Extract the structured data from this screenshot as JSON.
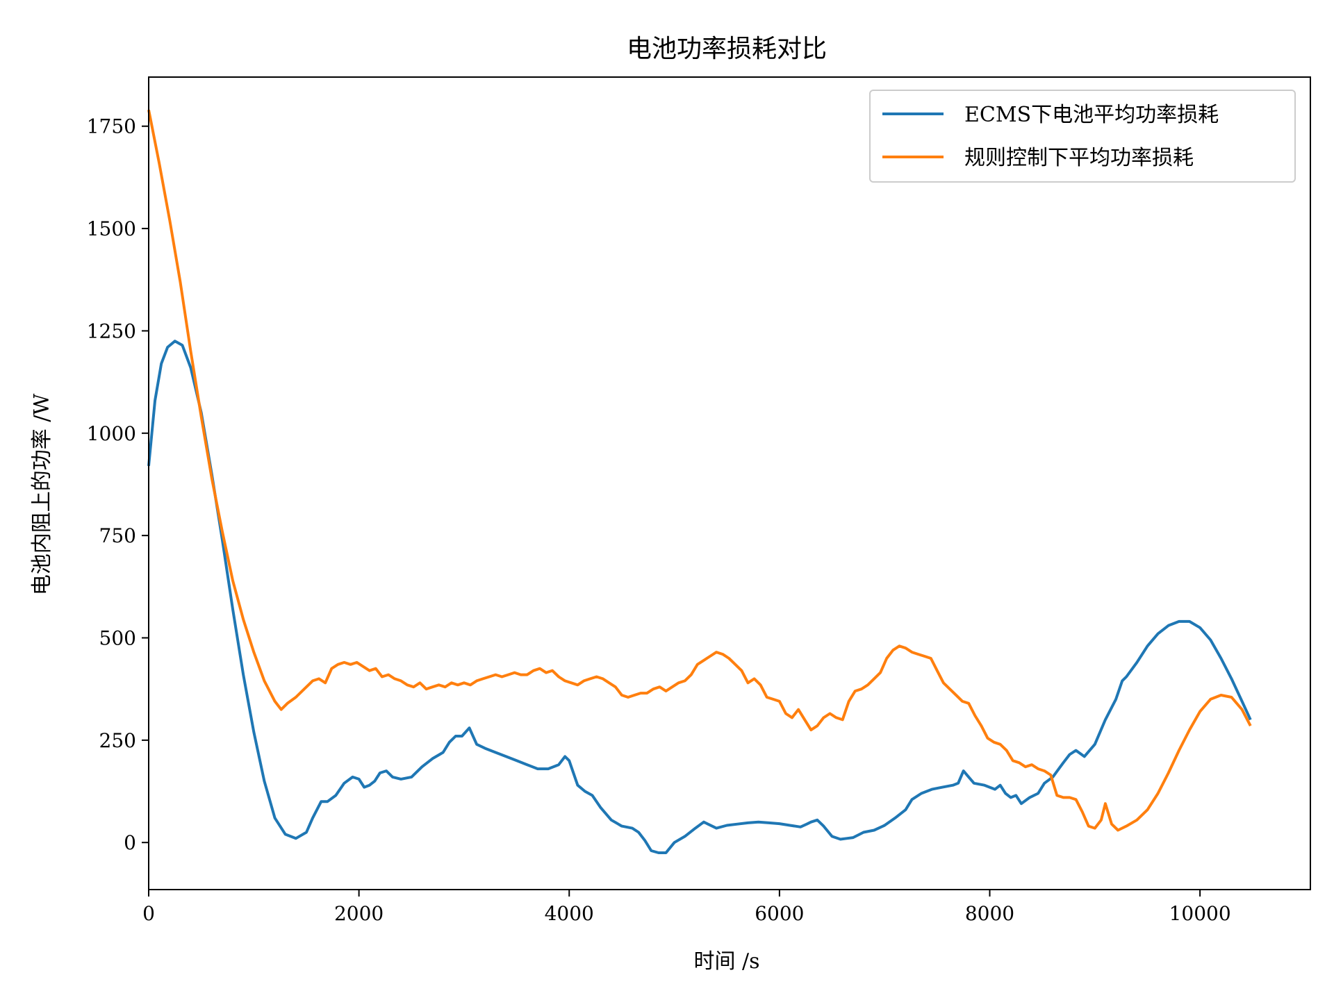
{
  "chart_data": {
    "type": "line",
    "title": "电池功率损耗对比",
    "xlabel": "时间 /s",
    "ylabel": "电池内阻上的功率 /W",
    "xlim": [
      0,
      11050
    ],
    "ylim": [
      -115,
      1870
    ],
    "xticks": [
      0,
      2000,
      4000,
      6000,
      8000,
      10000
    ],
    "yticks": [
      0,
      250,
      500,
      750,
      1000,
      1250,
      1500,
      1750
    ],
    "grid": false,
    "legend_position": "top-right",
    "series": [
      {
        "name": "ECMS下电池平均功率损耗",
        "color": "#1f77b4",
        "points": [
          [
            0,
            920
          ],
          [
            60,
            1080
          ],
          [
            120,
            1170
          ],
          [
            180,
            1210
          ],
          [
            250,
            1225
          ],
          [
            320,
            1215
          ],
          [
            400,
            1160
          ],
          [
            500,
            1050
          ],
          [
            600,
            900
          ],
          [
            700,
            740
          ],
          [
            800,
            570
          ],
          [
            900,
            410
          ],
          [
            1000,
            270
          ],
          [
            1100,
            150
          ],
          [
            1200,
            60
          ],
          [
            1300,
            20
          ],
          [
            1400,
            10
          ],
          [
            1500,
            25
          ],
          [
            1560,
            60
          ],
          [
            1640,
            100
          ],
          [
            1700,
            100
          ],
          [
            1780,
            115
          ],
          [
            1860,
            145
          ],
          [
            1940,
            160
          ],
          [
            2000,
            155
          ],
          [
            2050,
            135
          ],
          [
            2100,
            140
          ],
          [
            2150,
            150
          ],
          [
            2200,
            170
          ],
          [
            2260,
            175
          ],
          [
            2320,
            160
          ],
          [
            2400,
            155
          ],
          [
            2500,
            160
          ],
          [
            2600,
            185
          ],
          [
            2700,
            205
          ],
          [
            2800,
            220
          ],
          [
            2860,
            245
          ],
          [
            2920,
            260
          ],
          [
            2980,
            260
          ],
          [
            3050,
            280
          ],
          [
            3120,
            240
          ],
          [
            3200,
            230
          ],
          [
            3300,
            220
          ],
          [
            3400,
            210
          ],
          [
            3500,
            200
          ],
          [
            3600,
            190
          ],
          [
            3700,
            180
          ],
          [
            3800,
            180
          ],
          [
            3900,
            190
          ],
          [
            3960,
            210
          ],
          [
            4000,
            200
          ],
          [
            4080,
            140
          ],
          [
            4150,
            125
          ],
          [
            4220,
            115
          ],
          [
            4300,
            85
          ],
          [
            4400,
            55
          ],
          [
            4500,
            40
          ],
          [
            4600,
            35
          ],
          [
            4660,
            25
          ],
          [
            4720,
            5
          ],
          [
            4780,
            -20
          ],
          [
            4850,
            -25
          ],
          [
            4920,
            -25
          ],
          [
            5000,
            0
          ],
          [
            5100,
            15
          ],
          [
            5200,
            35
          ],
          [
            5280,
            50
          ],
          [
            5400,
            35
          ],
          [
            5500,
            42
          ],
          [
            5600,
            45
          ],
          [
            5700,
            48
          ],
          [
            5800,
            50
          ],
          [
            5900,
            48
          ],
          [
            6000,
            46
          ],
          [
            6100,
            42
          ],
          [
            6200,
            38
          ],
          [
            6260,
            45
          ],
          [
            6300,
            50
          ],
          [
            6360,
            55
          ],
          [
            6420,
            40
          ],
          [
            6500,
            15
          ],
          [
            6580,
            8
          ],
          [
            6640,
            10
          ],
          [
            6700,
            12
          ],
          [
            6800,
            25
          ],
          [
            6900,
            30
          ],
          [
            7000,
            42
          ],
          [
            7100,
            60
          ],
          [
            7200,
            80
          ],
          [
            7260,
            105
          ],
          [
            7350,
            120
          ],
          [
            7450,
            130
          ],
          [
            7550,
            135
          ],
          [
            7650,
            140
          ],
          [
            7700,
            145
          ],
          [
            7750,
            175
          ],
          [
            7800,
            160
          ],
          [
            7850,
            145
          ],
          [
            7950,
            140
          ],
          [
            8050,
            130
          ],
          [
            8100,
            140
          ],
          [
            8150,
            120
          ],
          [
            8200,
            110
          ],
          [
            8250,
            115
          ],
          [
            8300,
            95
          ],
          [
            8380,
            110
          ],
          [
            8460,
            120
          ],
          [
            8520,
            145
          ],
          [
            8600,
            160
          ],
          [
            8700,
            195
          ],
          [
            8760,
            215
          ],
          [
            8820,
            225
          ],
          [
            8900,
            210
          ],
          [
            9000,
            240
          ],
          [
            9100,
            300
          ],
          [
            9200,
            350
          ],
          [
            9260,
            395
          ],
          [
            9300,
            405
          ],
          [
            9400,
            440
          ],
          [
            9500,
            480
          ],
          [
            9600,
            510
          ],
          [
            9700,
            530
          ],
          [
            9800,
            540
          ],
          [
            9900,
            540
          ],
          [
            10000,
            525
          ],
          [
            10100,
            495
          ],
          [
            10200,
            450
          ],
          [
            10300,
            400
          ],
          [
            10400,
            345
          ],
          [
            10480,
            300
          ]
        ]
      },
      {
        "name": "规则控制下平均功率损耗",
        "color": "#ff7f0e",
        "points": [
          [
            0,
            1790
          ],
          [
            100,
            1660
          ],
          [
            200,
            1520
          ],
          [
            300,
            1370
          ],
          [
            400,
            1200
          ],
          [
            500,
            1040
          ],
          [
            600,
            890
          ],
          [
            700,
            760
          ],
          [
            800,
            640
          ],
          [
            900,
            545
          ],
          [
            1000,
            465
          ],
          [
            1100,
            395
          ],
          [
            1200,
            345
          ],
          [
            1260,
            325
          ],
          [
            1320,
            340
          ],
          [
            1400,
            355
          ],
          [
            1480,
            375
          ],
          [
            1560,
            395
          ],
          [
            1620,
            400
          ],
          [
            1680,
            390
          ],
          [
            1740,
            425
          ],
          [
            1800,
            435
          ],
          [
            1860,
            440
          ],
          [
            1920,
            435
          ],
          [
            1980,
            440
          ],
          [
            2040,
            430
          ],
          [
            2100,
            420
          ],
          [
            2160,
            425
          ],
          [
            2220,
            405
          ],
          [
            2280,
            410
          ],
          [
            2340,
            400
          ],
          [
            2400,
            395
          ],
          [
            2460,
            385
          ],
          [
            2520,
            380
          ],
          [
            2580,
            390
          ],
          [
            2640,
            375
          ],
          [
            2700,
            380
          ],
          [
            2760,
            385
          ],
          [
            2820,
            380
          ],
          [
            2880,
            390
          ],
          [
            2940,
            385
          ],
          [
            3000,
            390
          ],
          [
            3060,
            385
          ],
          [
            3120,
            395
          ],
          [
            3180,
            400
          ],
          [
            3240,
            405
          ],
          [
            3300,
            410
          ],
          [
            3360,
            405
          ],
          [
            3420,
            410
          ],
          [
            3480,
            415
          ],
          [
            3540,
            410
          ],
          [
            3600,
            410
          ],
          [
            3660,
            420
          ],
          [
            3720,
            425
          ],
          [
            3780,
            415
          ],
          [
            3840,
            420
          ],
          [
            3900,
            405
          ],
          [
            3960,
            395
          ],
          [
            4020,
            390
          ],
          [
            4080,
            385
          ],
          [
            4140,
            395
          ],
          [
            4200,
            400
          ],
          [
            4260,
            405
          ],
          [
            4320,
            400
          ],
          [
            4380,
            390
          ],
          [
            4440,
            380
          ],
          [
            4500,
            360
          ],
          [
            4560,
            355
          ],
          [
            4620,
            360
          ],
          [
            4680,
            365
          ],
          [
            4740,
            365
          ],
          [
            4800,
            375
          ],
          [
            4860,
            380
          ],
          [
            4920,
            370
          ],
          [
            4980,
            380
          ],
          [
            5040,
            390
          ],
          [
            5100,
            395
          ],
          [
            5160,
            410
          ],
          [
            5220,
            435
          ],
          [
            5280,
            445
          ],
          [
            5340,
            455
          ],
          [
            5400,
            465
          ],
          [
            5460,
            460
          ],
          [
            5520,
            450
          ],
          [
            5580,
            435
          ],
          [
            5640,
            420
          ],
          [
            5700,
            390
          ],
          [
            5760,
            400
          ],
          [
            5820,
            385
          ],
          [
            5880,
            355
          ],
          [
            5940,
            350
          ],
          [
            6000,
            345
          ],
          [
            6060,
            315
          ],
          [
            6120,
            305
          ],
          [
            6180,
            325
          ],
          [
            6240,
            300
          ],
          [
            6300,
            275
          ],
          [
            6360,
            285
          ],
          [
            6420,
            305
          ],
          [
            6480,
            315
          ],
          [
            6540,
            305
          ],
          [
            6600,
            300
          ],
          [
            6660,
            345
          ],
          [
            6720,
            370
          ],
          [
            6780,
            375
          ],
          [
            6840,
            385
          ],
          [
            6900,
            400
          ],
          [
            6960,
            415
          ],
          [
            7020,
            450
          ],
          [
            7080,
            470
          ],
          [
            7140,
            480
          ],
          [
            7200,
            475
          ],
          [
            7260,
            465
          ],
          [
            7320,
            460
          ],
          [
            7380,
            455
          ],
          [
            7440,
            450
          ],
          [
            7500,
            420
          ],
          [
            7560,
            390
          ],
          [
            7620,
            375
          ],
          [
            7680,
            360
          ],
          [
            7740,
            345
          ],
          [
            7800,
            340
          ],
          [
            7860,
            310
          ],
          [
            7920,
            285
          ],
          [
            7980,
            255
          ],
          [
            8040,
            245
          ],
          [
            8100,
            240
          ],
          [
            8160,
            225
          ],
          [
            8220,
            200
          ],
          [
            8280,
            195
          ],
          [
            8340,
            185
          ],
          [
            8400,
            190
          ],
          [
            8460,
            180
          ],
          [
            8520,
            175
          ],
          [
            8580,
            165
          ],
          [
            8640,
            115
          ],
          [
            8700,
            110
          ],
          [
            8760,
            110
          ],
          [
            8820,
            105
          ],
          [
            8880,
            75
          ],
          [
            8940,
            40
          ],
          [
            9000,
            35
          ],
          [
            9060,
            55
          ],
          [
            9100,
            95
          ],
          [
            9160,
            45
          ],
          [
            9220,
            30
          ],
          [
            9300,
            40
          ],
          [
            9400,
            55
          ],
          [
            9500,
            80
          ],
          [
            9600,
            120
          ],
          [
            9700,
            170
          ],
          [
            9800,
            225
          ],
          [
            9900,
            275
          ],
          [
            10000,
            320
          ],
          [
            10100,
            350
          ],
          [
            10200,
            360
          ],
          [
            10300,
            355
          ],
          [
            10400,
            325
          ],
          [
            10480,
            285
          ]
        ]
      }
    ]
  }
}
